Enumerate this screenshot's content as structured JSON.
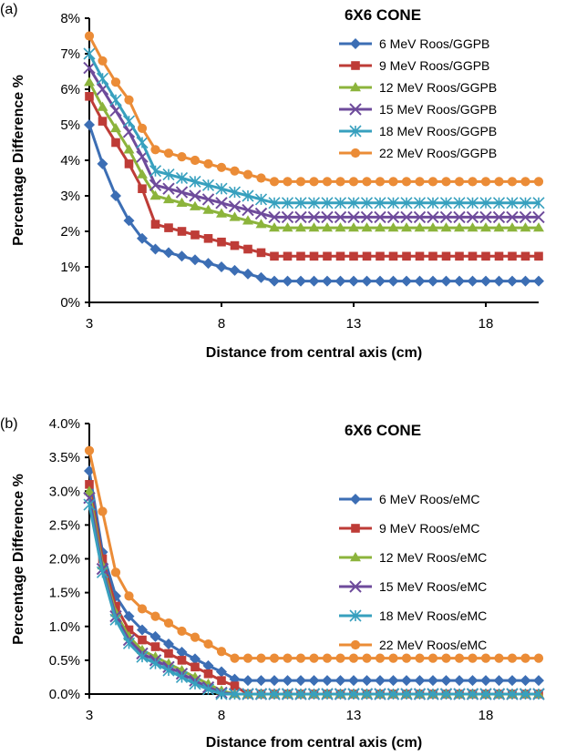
{
  "chart_data": [
    {
      "type": "line",
      "panel_label": "(a)",
      "title": "6X6 CONE",
      "xlabel": "Distance from central axis (cm)",
      "ylabel": "Percentage Difference %",
      "xlim": [
        3,
        20
      ],
      "ylim": [
        0,
        8
      ],
      "xticks": [
        "3",
        "8",
        "13",
        "18"
      ],
      "yticks": [
        "0%",
        "1%",
        "2%",
        "3%",
        "4%",
        "5%",
        "6%",
        "7%",
        "8%"
      ],
      "grid": false,
      "legend": "top-right",
      "x_start": 3,
      "x_step": 0.5,
      "series": [
        {
          "name": "6 MeV  Roos/GGPB",
          "color": "#3c6eb4",
          "marker": "diamond",
          "values": [
            5.0,
            3.9,
            3.0,
            2.3,
            1.8,
            1.5,
            1.4,
            1.3,
            1.2,
            1.1,
            1.0,
            0.9,
            0.8,
            0.7,
            0.6,
            0.6,
            0.6,
            0.6,
            0.6,
            0.6,
            0.6,
            0.6,
            0.6,
            0.6,
            0.6,
            0.6,
            0.6,
            0.6,
            0.6,
            0.6,
            0.6,
            0.6,
            0.6,
            0.6,
            0.6
          ]
        },
        {
          "name": "9 MeV  Roos/GGPB",
          "color": "#be3c37",
          "marker": "square",
          "values": [
            5.8,
            5.1,
            4.5,
            3.9,
            3.2,
            2.2,
            2.1,
            2.0,
            1.9,
            1.8,
            1.7,
            1.6,
            1.5,
            1.4,
            1.3,
            1.3,
            1.3,
            1.3,
            1.3,
            1.3,
            1.3,
            1.3,
            1.3,
            1.3,
            1.3,
            1.3,
            1.3,
            1.3,
            1.3,
            1.3,
            1.3,
            1.3,
            1.3,
            1.3,
            1.3
          ]
        },
        {
          "name": "12 MeV  Roos/GGPB",
          "color": "#8cb43c",
          "marker": "triangle",
          "values": [
            6.2,
            5.5,
            4.9,
            4.3,
            3.6,
            3.0,
            2.9,
            2.8,
            2.7,
            2.6,
            2.5,
            2.4,
            2.3,
            2.2,
            2.1,
            2.1,
            2.1,
            2.1,
            2.1,
            2.1,
            2.1,
            2.1,
            2.1,
            2.1,
            2.1,
            2.1,
            2.1,
            2.1,
            2.1,
            2.1,
            2.1,
            2.1,
            2.1,
            2.1,
            2.1
          ]
        },
        {
          "name": "15 MeV  Roos/GGPB",
          "color": "#6e4b9b",
          "marker": "x",
          "values": [
            6.6,
            6.0,
            5.4,
            4.8,
            4.1,
            3.3,
            3.2,
            3.1,
            3.0,
            2.9,
            2.8,
            2.7,
            2.6,
            2.5,
            2.4,
            2.4,
            2.4,
            2.4,
            2.4,
            2.4,
            2.4,
            2.4,
            2.4,
            2.4,
            2.4,
            2.4,
            2.4,
            2.4,
            2.4,
            2.4,
            2.4,
            2.4,
            2.4,
            2.4,
            2.4
          ]
        },
        {
          "name": "18 MeV  Roos/GGPB",
          "color": "#37a0be",
          "marker": "star",
          "values": [
            7.0,
            6.3,
            5.7,
            5.1,
            4.5,
            3.7,
            3.6,
            3.5,
            3.4,
            3.3,
            3.2,
            3.1,
            3.0,
            2.9,
            2.8,
            2.8,
            2.8,
            2.8,
            2.8,
            2.8,
            2.8,
            2.8,
            2.8,
            2.8,
            2.8,
            2.8,
            2.8,
            2.8,
            2.8,
            2.8,
            2.8,
            2.8,
            2.8,
            2.8,
            2.8
          ]
        },
        {
          "name": "22 MeV  Roos/GGPB",
          "color": "#eb8c37",
          "marker": "circle",
          "values": [
            7.5,
            6.8,
            6.2,
            5.7,
            4.9,
            4.3,
            4.2,
            4.1,
            4.0,
            3.9,
            3.8,
            3.7,
            3.6,
            3.5,
            3.4,
            3.4,
            3.4,
            3.4,
            3.4,
            3.4,
            3.4,
            3.4,
            3.4,
            3.4,
            3.4,
            3.4,
            3.4,
            3.4,
            3.4,
            3.4,
            3.4,
            3.4,
            3.4,
            3.4,
            3.4
          ]
        }
      ]
    },
    {
      "type": "line",
      "panel_label": "(b)",
      "title": "6X6 CONE",
      "xlabel": "Distance from central axis (cm)",
      "ylabel": "Percentage Difference %",
      "xlim": [
        3,
        20
      ],
      "ylim": [
        0,
        4
      ],
      "xticks": [
        "3",
        "8",
        "13",
        "18"
      ],
      "yticks": [
        "0.0%",
        "0.5%",
        "1.0%",
        "1.5%",
        "2.0%",
        "2.5%",
        "3.0%",
        "3.5%",
        "4.0%"
      ],
      "grid": false,
      "legend": "right",
      "x_start": 3,
      "x_step": 0.5,
      "series": [
        {
          "name": "6 MeV Roos/eMC",
          "color": "#3c6eb4",
          "marker": "diamond",
          "values": [
            3.3,
            2.1,
            1.45,
            1.15,
            0.95,
            0.85,
            0.74,
            0.62,
            0.52,
            0.42,
            0.33,
            0.22,
            0.2,
            0.2,
            0.2,
            0.2,
            0.2,
            0.2,
            0.2,
            0.2,
            0.2,
            0.2,
            0.2,
            0.2,
            0.2,
            0.2,
            0.2,
            0.2,
            0.2,
            0.2,
            0.2,
            0.2,
            0.2,
            0.2,
            0.2
          ]
        },
        {
          "name": "9 MeV Roos/eMC",
          "color": "#be3c37",
          "marker": "square",
          "values": [
            3.1,
            2.0,
            1.3,
            0.95,
            0.8,
            0.7,
            0.6,
            0.5,
            0.4,
            0.3,
            0.2,
            0.12,
            0,
            0,
            0,
            0,
            0,
            0,
            0,
            0,
            0,
            0,
            0,
            0,
            0,
            0,
            0,
            0,
            0,
            0,
            0,
            0,
            0,
            0,
            0
          ]
        },
        {
          "name": "12 MeV Roos/eMC",
          "color": "#8cb43c",
          "marker": "triangle",
          "values": [
            3.0,
            1.9,
            1.2,
            0.85,
            0.65,
            0.55,
            0.45,
            0.35,
            0.25,
            0.15,
            0.05,
            0,
            0,
            0,
            0,
            0,
            0,
            0,
            0,
            0,
            0,
            0,
            0,
            0,
            0,
            0,
            0,
            0,
            0,
            0,
            0,
            0,
            0,
            0,
            0
          ]
        },
        {
          "name": "15 MeV Roos/eMC",
          "color": "#6e4b9b",
          "marker": "x",
          "values": [
            2.9,
            1.85,
            1.15,
            0.8,
            0.6,
            0.5,
            0.4,
            0.3,
            0.2,
            0.1,
            0.02,
            0,
            0,
            0,
            0,
            0,
            0,
            0,
            0,
            0,
            0,
            0,
            0,
            0,
            0,
            0,
            0,
            0,
            0,
            0,
            0,
            0,
            0,
            0,
            0
          ]
        },
        {
          "name": "18 MeV Roos/eMC",
          "color": "#37a0be",
          "marker": "star",
          "values": [
            2.8,
            1.8,
            1.1,
            0.75,
            0.55,
            0.45,
            0.35,
            0.25,
            0.15,
            0.07,
            0,
            0,
            0,
            0,
            0,
            0,
            0,
            0,
            0,
            0,
            0,
            0,
            0,
            0,
            0,
            0,
            0,
            0,
            0,
            0,
            0,
            0,
            0,
            0,
            0
          ]
        },
        {
          "name": "22 MeV Roos/eMC",
          "color": "#eb8c37",
          "marker": "circle",
          "values": [
            3.6,
            2.7,
            1.8,
            1.45,
            1.26,
            1.15,
            1.05,
            0.93,
            0.84,
            0.74,
            0.63,
            0.53,
            0.53,
            0.53,
            0.53,
            0.53,
            0.53,
            0.53,
            0.53,
            0.53,
            0.53,
            0.53,
            0.53,
            0.53,
            0.53,
            0.53,
            0.53,
            0.53,
            0.53,
            0.53,
            0.53,
            0.53,
            0.53,
            0.53,
            0.53
          ]
        }
      ]
    }
  ]
}
